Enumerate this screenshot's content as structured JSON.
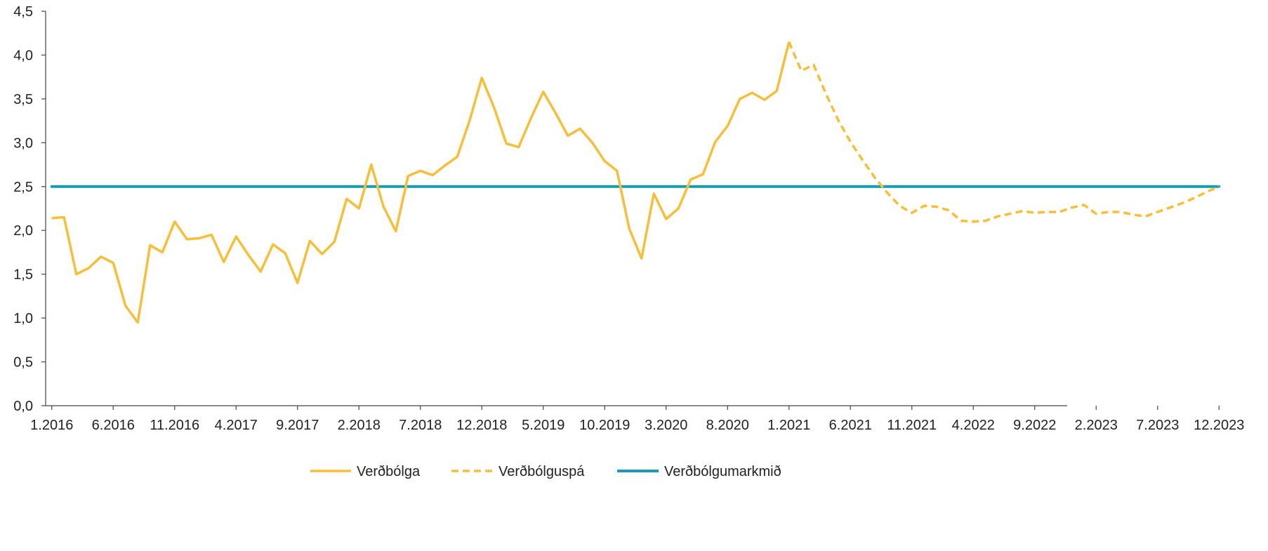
{
  "chart_data": {
    "type": "line",
    "x_axis_labels": [
      "1.2016",
      "6.2016",
      "11.2016",
      "4.2017",
      "9.2017",
      "2.2018",
      "7.2018",
      "12.2018",
      "5.2019",
      "10.2019",
      "3.2020",
      "8.2020",
      "1.2021",
      "6.2021",
      "11.2021",
      "4.2022",
      "9.2022",
      "2.2023",
      "7.2023",
      "12.2023"
    ],
    "y_ticks": [
      "0,0",
      "0,5",
      "1,0",
      "1,5",
      "2,0",
      "2,5",
      "3,0",
      "3,5",
      "4,0",
      "4,5"
    ],
    "ylim": [
      0,
      4.5
    ],
    "x_start": "1.2016",
    "x_end": "12.2023",
    "series": [
      {
        "name": "Verðbólga",
        "style": "solid",
        "color": "#F7BE38",
        "values": [
          2.14,
          2.15,
          1.5,
          1.57,
          1.7,
          1.63,
          1.14,
          0.95,
          1.83,
          1.75,
          2.1,
          1.9,
          1.91,
          1.95,
          1.64,
          1.93,
          1.72,
          1.53,
          1.84,
          1.74,
          1.4,
          1.88,
          1.73,
          1.87,
          2.36,
          2.25,
          2.75,
          2.27,
          1.99,
          2.62,
          2.68,
          2.63,
          2.74,
          2.84,
          3.25,
          3.74,
          3.4,
          2.99,
          2.95,
          3.28,
          3.58,
          3.34,
          3.08,
          3.16,
          3.0,
          2.79,
          2.68,
          2.02,
          1.68,
          2.42,
          2.13,
          2.25,
          2.58,
          2.64,
          3.01,
          3.19,
          3.5,
          3.57,
          3.49,
          3.59,
          4.15
        ]
      },
      {
        "name": "Verðbólguspá",
        "style": "dashed",
        "color": "#F7BE38",
        "start_index": 60,
        "values": [
          4.15,
          3.82,
          3.89,
          3.56,
          3.26,
          3.01,
          2.8,
          2.6,
          2.43,
          2.28,
          2.2,
          2.28,
          2.27,
          2.23,
          2.11,
          2.1,
          2.11,
          2.16,
          2.19,
          2.22,
          2.2,
          2.21,
          2.21,
          2.26,
          2.29,
          2.19,
          2.21,
          2.21,
          2.18,
          2.16,
          2.21,
          2.26,
          2.31,
          2.37,
          2.44,
          2.5
        ]
      },
      {
        "name": "Verðbólgumarkmið",
        "style": "solid",
        "color": "#1A9BB4",
        "start_index": 0,
        "end_index": 95,
        "constant": 2.5
      }
    ],
    "grid": false,
    "legend_position": "bottom"
  }
}
